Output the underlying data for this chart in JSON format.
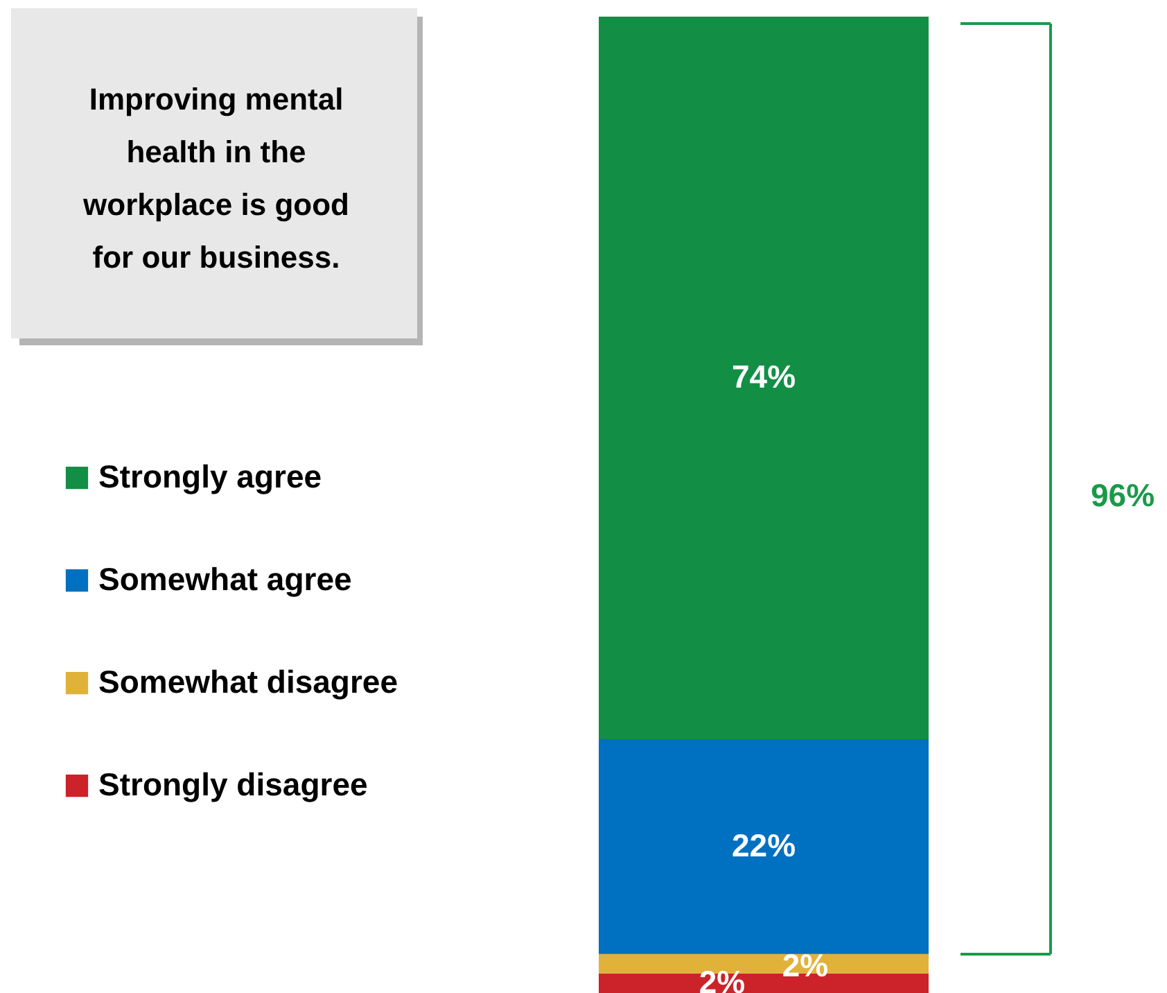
{
  "chart_data": {
    "type": "bar",
    "stacked": true,
    "title": "Improving mental health in the workplace is good for our business.",
    "categories": [
      null
    ],
    "series": [
      {
        "name": "Strongly disagree",
        "color": "#cc2229",
        "values": [
          2
        ],
        "value_labels": [
          "2%"
        ]
      },
      {
        "name": "Somewhat disagree",
        "color": "#e0b23a",
        "values": [
          2
        ],
        "value_labels": [
          "2%"
        ]
      },
      {
        "name": "Somewhat agree",
        "color": "#0070c0",
        "values": [
          22
        ],
        "value_labels": [
          "22%"
        ]
      },
      {
        "name": "Strongly agree",
        "color": "#128f45",
        "values": [
          74
        ],
        "value_labels": [
          "74%"
        ]
      }
    ],
    "annotations": [
      "96%"
    ],
    "legend": "left"
  }
}
